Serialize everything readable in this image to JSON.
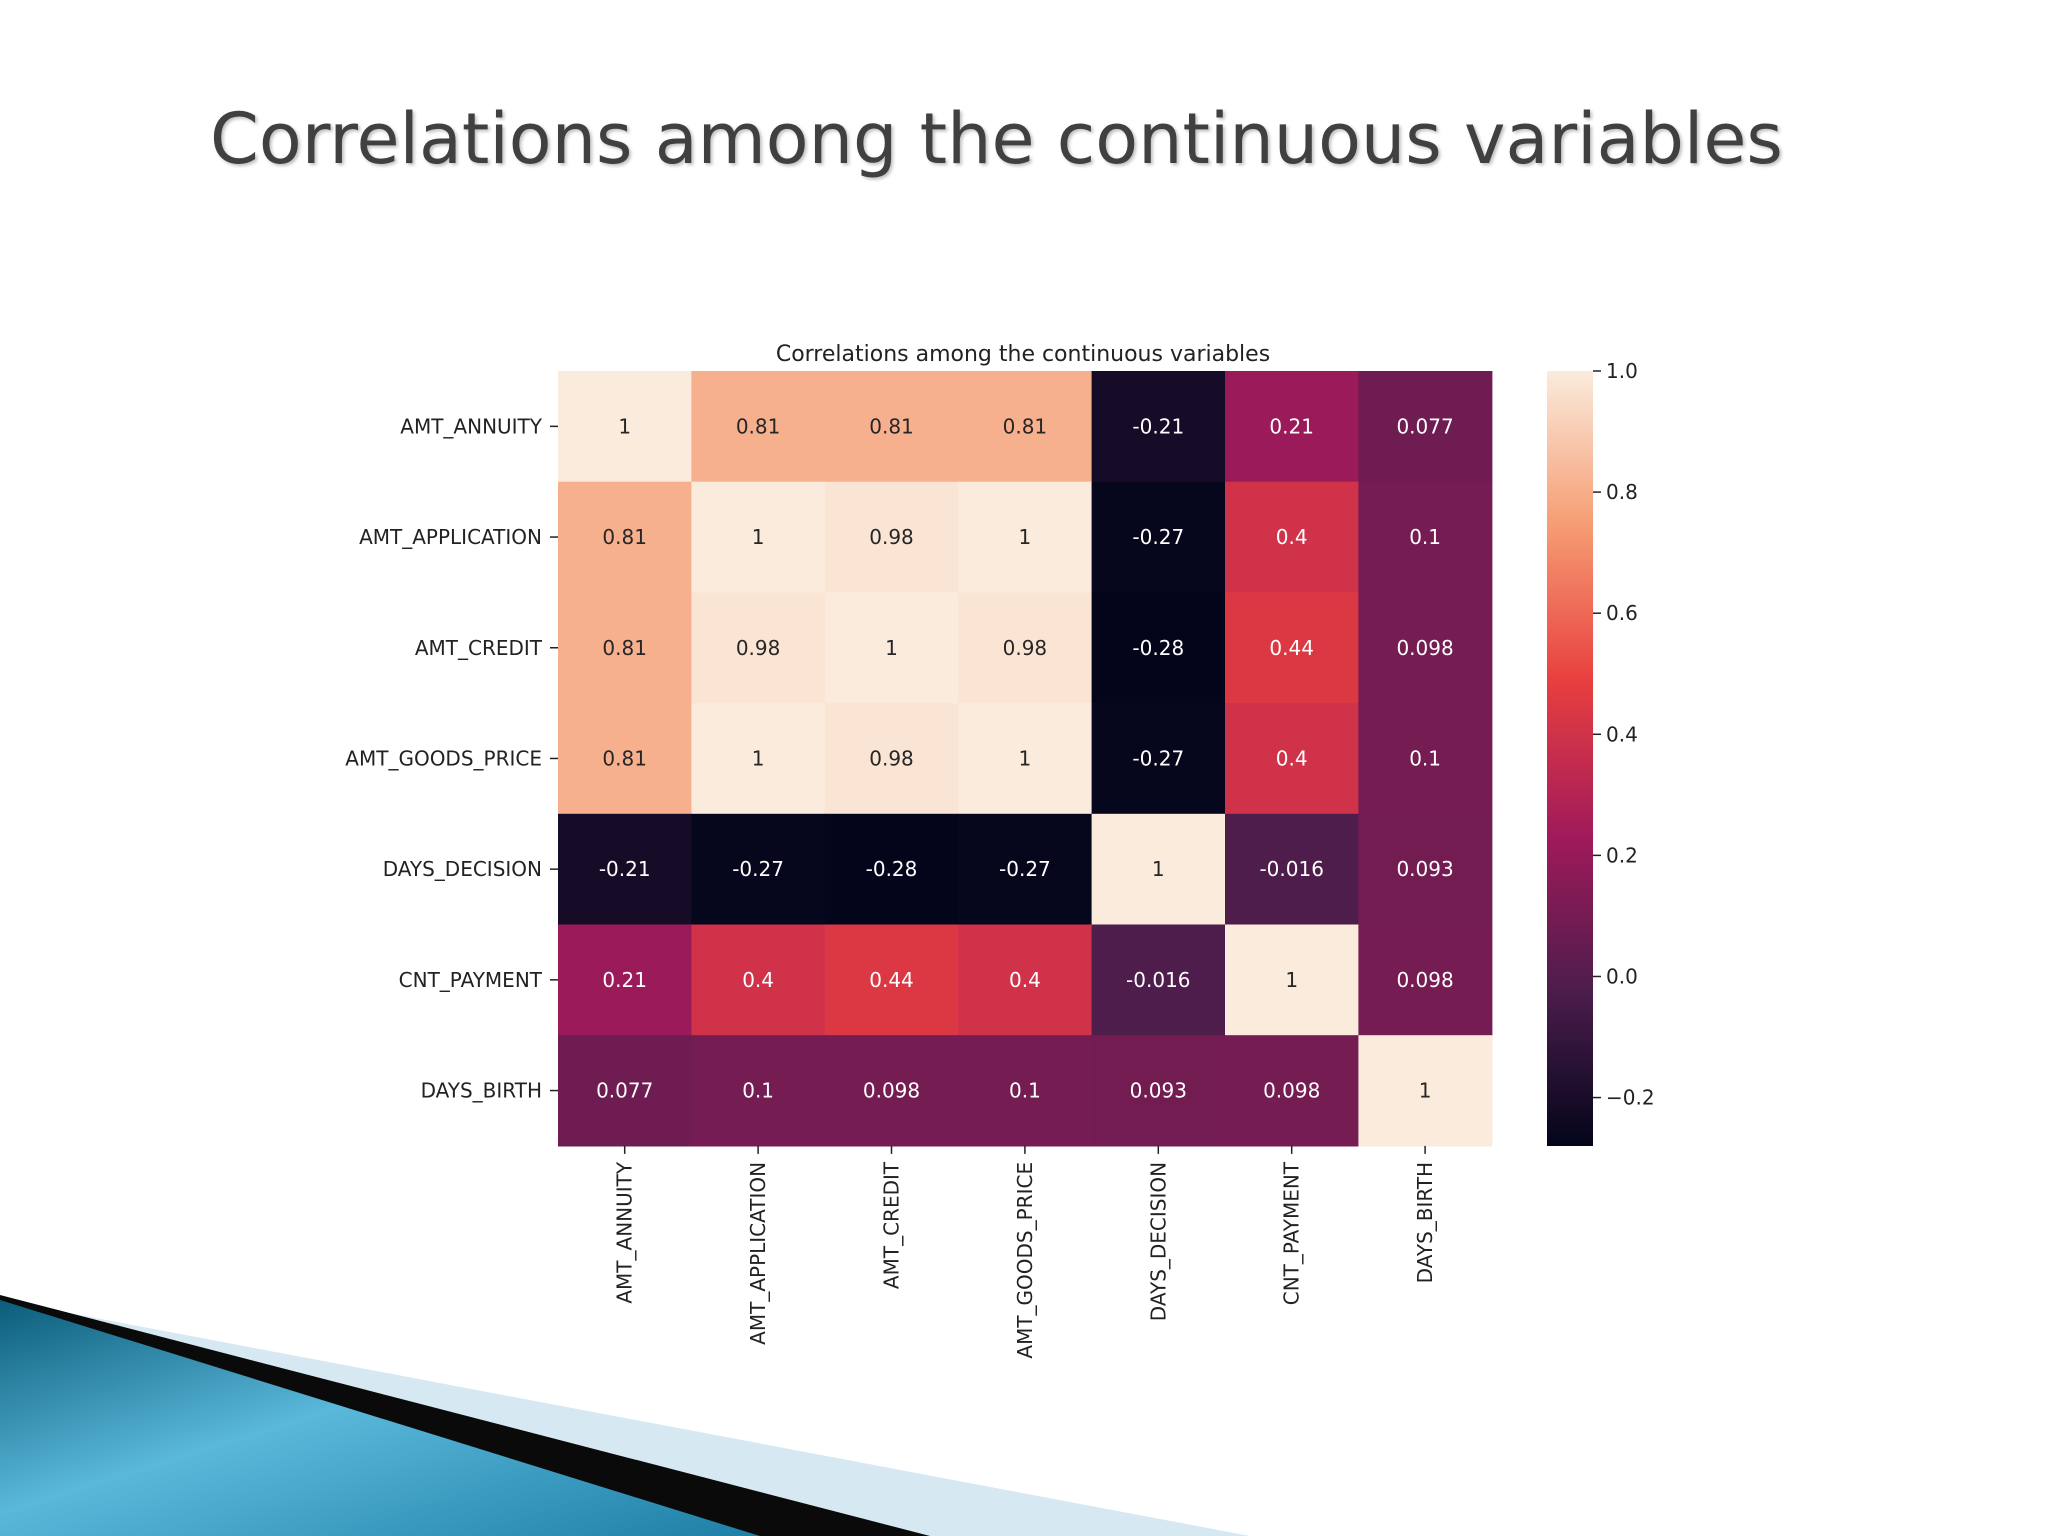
{
  "slide": {
    "title": "Correlations among the continuous variables"
  },
  "chart_data": {
    "type": "heatmap",
    "title": "Correlations among the continuous variables",
    "variables": [
      "AMT_ANNUITY",
      "AMT_APPLICATION",
      "AMT_CREDIT",
      "AMT_GOODS_PRICE",
      "DAYS_DECISION",
      "CNT_PAYMENT",
      "DAYS_BIRTH"
    ],
    "matrix": [
      [
        1,
        0.81,
        0.81,
        0.81,
        -0.21,
        0.21,
        0.077
      ],
      [
        0.81,
        1,
        0.98,
        1,
        -0.27,
        0.4,
        0.1
      ],
      [
        0.81,
        0.98,
        1,
        0.98,
        -0.28,
        0.44,
        0.098
      ],
      [
        0.81,
        1,
        0.98,
        1,
        -0.27,
        0.4,
        0.1
      ],
      [
        -0.21,
        -0.27,
        -0.28,
        -0.27,
        1,
        -0.016,
        0.093
      ],
      [
        0.21,
        0.4,
        0.44,
        0.4,
        -0.016,
        1,
        0.098
      ],
      [
        0.077,
        0.1,
        0.098,
        0.1,
        0.093,
        0.098,
        1
      ]
    ],
    "labels": [
      [
        "1",
        "0.81",
        "0.81",
        "0.81",
        "-0.21",
        "0.21",
        "0.077"
      ],
      [
        "0.81",
        "1",
        "0.98",
        "1",
        "-0.27",
        "0.4",
        "0.1"
      ],
      [
        "0.81",
        "0.98",
        "1",
        "0.98",
        "-0.28",
        "0.44",
        "0.098"
      ],
      [
        "0.81",
        "1",
        "0.98",
        "1",
        "-0.27",
        "0.4",
        "0.1"
      ],
      [
        "-0.21",
        "-0.27",
        "-0.28",
        "-0.27",
        "1",
        "-0.016",
        "0.093"
      ],
      [
        "0.21",
        "0.4",
        "0.44",
        "0.4",
        "-0.016",
        "1",
        "0.098"
      ],
      [
        "0.077",
        "0.1",
        "0.098",
        "0.1",
        "0.093",
        "0.098",
        "1"
      ]
    ],
    "colorbar": {
      "vmin": -0.28,
      "vmax": 1.0,
      "ticks": [
        1.0,
        0.8,
        0.6,
        0.4,
        0.2,
        0.0,
        -0.2
      ],
      "tick_labels": [
        "1.0",
        "0.8",
        "0.6",
        "0.4",
        "0.2",
        "0.0",
        "−0.2"
      ],
      "colormap": "rocket",
      "colormap_stops": [
        "#03051a",
        "#4c1d4b",
        "#a11a5b",
        "#e83f3f",
        "#f69c73",
        "#faebdd"
      ]
    }
  }
}
